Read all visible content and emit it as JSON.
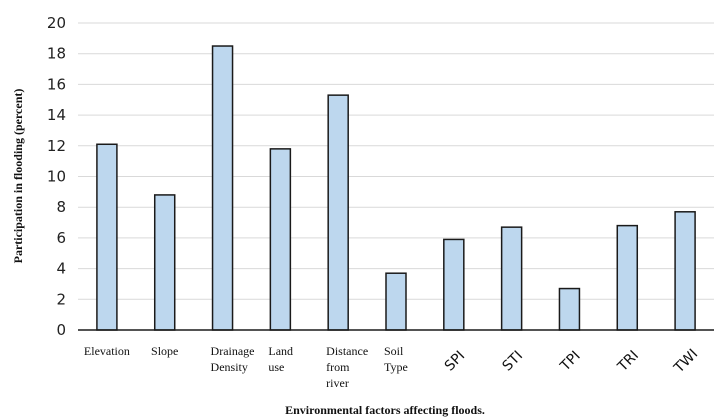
{
  "chart_data": {
    "type": "bar",
    "categories": [
      [
        "Elevation"
      ],
      [
        "Slope"
      ],
      [
        "Drainage",
        "Density"
      ],
      [
        "Land",
        "use"
      ],
      [
        "Distance",
        "from",
        "river"
      ],
      [
        "Soil",
        "Type"
      ],
      [
        "SPI"
      ],
      [
        "STI"
      ],
      [
        "TPI"
      ],
      [
        "TRI"
      ],
      [
        "TWI"
      ]
    ],
    "rotated_categories": [
      false,
      false,
      false,
      false,
      false,
      false,
      true,
      true,
      true,
      true,
      true
    ],
    "values": [
      12.1,
      8.8,
      18.5,
      11.8,
      15.3,
      3.7,
      5.9,
      6.7,
      2.7,
      6.8,
      7.7
    ],
    "ylim": [
      0,
      20
    ],
    "yticks": [
      "0",
      "2",
      "4",
      "6",
      "8",
      "10",
      "12",
      "14",
      "16",
      "18",
      "20"
    ],
    "xlabel": "Environmental factors affecting floods.",
    "ylabel": "Participation in flooding (percent)",
    "grid": true,
    "colors": {
      "bar_fill": "#bdd7ee",
      "bar_stroke": "#1a1a1a",
      "grid": "#d9d9d9"
    }
  }
}
